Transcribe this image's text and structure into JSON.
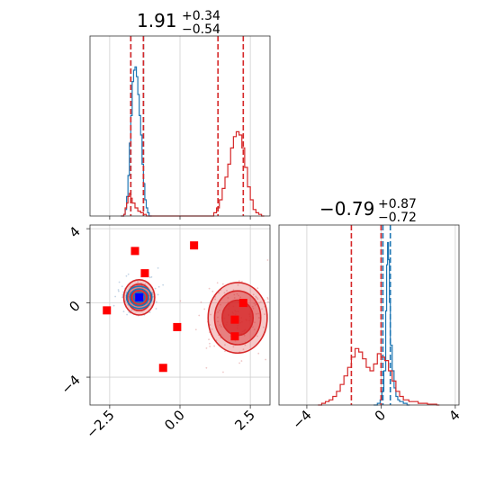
{
  "chart_data": [
    {
      "type": "histogram",
      "panel": "marginal-x",
      "title": {
        "value": "1.91",
        "plus": "+0.34",
        "minus": "−0.54"
      },
      "xlim": [
        -3.2,
        3.2
      ],
      "colors": {
        "blue": "#1f77b4",
        "red": "#d62728"
      },
      "series": [
        {
          "color": "blue",
          "quantiles": [
            -1.75,
            -1.3
          ],
          "bins": [
            [
              -2.1,
              0
            ],
            [
              -2.0,
              0.01
            ],
            [
              -1.95,
              0.04
            ],
            [
              -1.9,
              0.12
            ],
            [
              -1.85,
              0.25
            ],
            [
              -1.8,
              0.45
            ],
            [
              -1.75,
              0.62
            ],
            [
              -1.7,
              0.83
            ],
            [
              -1.65,
              0.9
            ],
            [
              -1.6,
              0.92
            ],
            [
              -1.55,
              0.86
            ],
            [
              -1.5,
              0.75
            ],
            [
              -1.45,
              0.62
            ],
            [
              -1.4,
              0.5
            ],
            [
              -1.35,
              0.32
            ],
            [
              -1.3,
              0.2
            ],
            [
              -1.25,
              0.1
            ],
            [
              -1.2,
              0.05
            ],
            [
              -1.15,
              0.02
            ],
            [
              -1.1,
              0.0
            ]
          ]
        },
        {
          "color": "red",
          "quantiles": [
            -1.75,
            -1.3,
            1.35,
            2.25
          ],
          "bins": [
            [
              -2.1,
              0
            ],
            [
              -2.0,
              0.01
            ],
            [
              -1.95,
              0.05
            ],
            [
              -1.9,
              0.08
            ],
            [
              -1.85,
              0.12
            ],
            [
              -1.8,
              0.14
            ],
            [
              -1.75,
              0.11
            ],
            [
              -1.7,
              0.08
            ],
            [
              -1.6,
              0.05
            ],
            [
              -1.5,
              0.03
            ],
            [
              -1.4,
              0.02
            ],
            [
              -1.3,
              0.01
            ],
            [
              -1.2,
              0.0
            ],
            [
              1.1,
              0.0
            ],
            [
              1.2,
              0.02
            ],
            [
              1.3,
              0.05
            ],
            [
              1.4,
              0.1
            ],
            [
              1.5,
              0.17
            ],
            [
              1.6,
              0.24
            ],
            [
              1.7,
              0.32
            ],
            [
              1.8,
              0.42
            ],
            [
              1.9,
              0.49
            ],
            [
              2.0,
              0.52
            ],
            [
              2.1,
              0.5
            ],
            [
              2.2,
              0.42
            ],
            [
              2.3,
              0.3
            ],
            [
              2.4,
              0.18
            ],
            [
              2.5,
              0.1
            ],
            [
              2.6,
              0.04
            ],
            [
              2.7,
              0.02
            ],
            [
              2.8,
              0.01
            ],
            [
              2.9,
              0.0
            ]
          ]
        }
      ]
    },
    {
      "type": "scatter",
      "panel": "joint",
      "xlim": [
        -3.2,
        3.2
      ],
      "ylim": [
        -5.5,
        4.2
      ],
      "xticks": [
        -2.5,
        0.0,
        2.5
      ],
      "xtick_labels": [
        "−2.5",
        "0.0",
        "2.5"
      ],
      "yticks": [
        4,
        0,
        -4
      ],
      "ytick_labels": [
        "4",
        "0",
        "−4"
      ],
      "markers": [
        {
          "x": -2.6,
          "y": -0.4,
          "color": "red"
        },
        {
          "x": -1.6,
          "y": 2.8,
          "color": "red"
        },
        {
          "x": -1.25,
          "y": 1.6,
          "color": "red"
        },
        {
          "x": 0.5,
          "y": 3.1,
          "color": "red"
        },
        {
          "x": -0.1,
          "y": -1.3,
          "color": "red"
        },
        {
          "x": -0.6,
          "y": -3.5,
          "color": "red"
        },
        {
          "x": 1.95,
          "y": -0.9,
          "color": "red"
        },
        {
          "x": 2.25,
          "y": 0.0,
          "color": "red"
        },
        {
          "x": 1.95,
          "y": -1.8,
          "color": "red"
        },
        {
          "x": -1.45,
          "y": 0.3,
          "color": "blue"
        }
      ],
      "contours": [
        {
          "color": "red",
          "cx": -1.45,
          "cy": 0.3,
          "rx": [
            0.55,
            0.42,
            0.28
          ],
          "ry": [
            0.95,
            0.72,
            0.45
          ]
        },
        {
          "color": "red",
          "cx": 2.05,
          "cy": -0.8,
          "rx": [
            1.05,
            0.82,
            0.55
          ],
          "ry": [
            1.9,
            1.45,
            0.95
          ]
        },
        {
          "color": "blue",
          "cx": -1.45,
          "cy": 0.3,
          "rx": [
            0.45,
            0.33,
            0.2
          ],
          "ry": [
            0.6,
            0.45,
            0.28
          ]
        }
      ]
    },
    {
      "type": "histogram",
      "panel": "marginal-y",
      "title": {
        "value": "−0.79",
        "plus": "+0.87",
        "minus": "−0.72"
      },
      "xlim": [
        -5.5,
        4.2
      ],
      "xticks": [
        -4,
        0,
        4
      ],
      "xtick_labels": [
        "−4",
        "0",
        "4"
      ],
      "series": [
        {
          "color": "blue",
          "quantiles": [
            0.1,
            0.5
          ],
          "bins": [
            [
              -0.4,
              0
            ],
            [
              -0.2,
              0.01
            ],
            [
              -0.05,
              0.03
            ],
            [
              0.05,
              0.08
            ],
            [
              0.15,
              0.2
            ],
            [
              0.25,
              0.55
            ],
            [
              0.3,
              0.82
            ],
            [
              0.35,
              0.95
            ],
            [
              0.4,
              0.85
            ],
            [
              0.45,
              0.6
            ],
            [
              0.5,
              0.35
            ],
            [
              0.6,
              0.2
            ],
            [
              0.7,
              0.1
            ],
            [
              0.8,
              0.05
            ],
            [
              0.9,
              0.03
            ],
            [
              1.0,
              0.02
            ],
            [
              1.2,
              0.01
            ],
            [
              1.4,
              0.0
            ]
          ]
        },
        {
          "color": "red",
          "quantiles": [
            -1.6,
            0.0
          ],
          "bins": [
            [
              -3.4,
              0
            ],
            [
              -3.2,
              0.01
            ],
            [
              -3.0,
              0.02
            ],
            [
              -2.8,
              0.03
            ],
            [
              -2.6,
              0.05
            ],
            [
              -2.4,
              0.08
            ],
            [
              -2.2,
              0.12
            ],
            [
              -2.0,
              0.17
            ],
            [
              -1.8,
              0.22
            ],
            [
              -1.6,
              0.28
            ],
            [
              -1.4,
              0.33
            ],
            [
              -1.2,
              0.31
            ],
            [
              -1.0,
              0.27
            ],
            [
              -0.8,
              0.22
            ],
            [
              -0.6,
              0.2
            ],
            [
              -0.4,
              0.24
            ],
            [
              -0.2,
              0.3
            ],
            [
              0.0,
              0.28
            ],
            [
              0.2,
              0.26
            ],
            [
              0.4,
              0.2
            ],
            [
              0.6,
              0.14
            ],
            [
              0.8,
              0.08
            ],
            [
              1.0,
              0.05
            ],
            [
              1.2,
              0.03
            ],
            [
              1.5,
              0.02
            ],
            [
              2.0,
              0.01
            ],
            [
              2.5,
              0.005
            ],
            [
              3.0,
              0.0
            ]
          ]
        }
      ]
    }
  ]
}
